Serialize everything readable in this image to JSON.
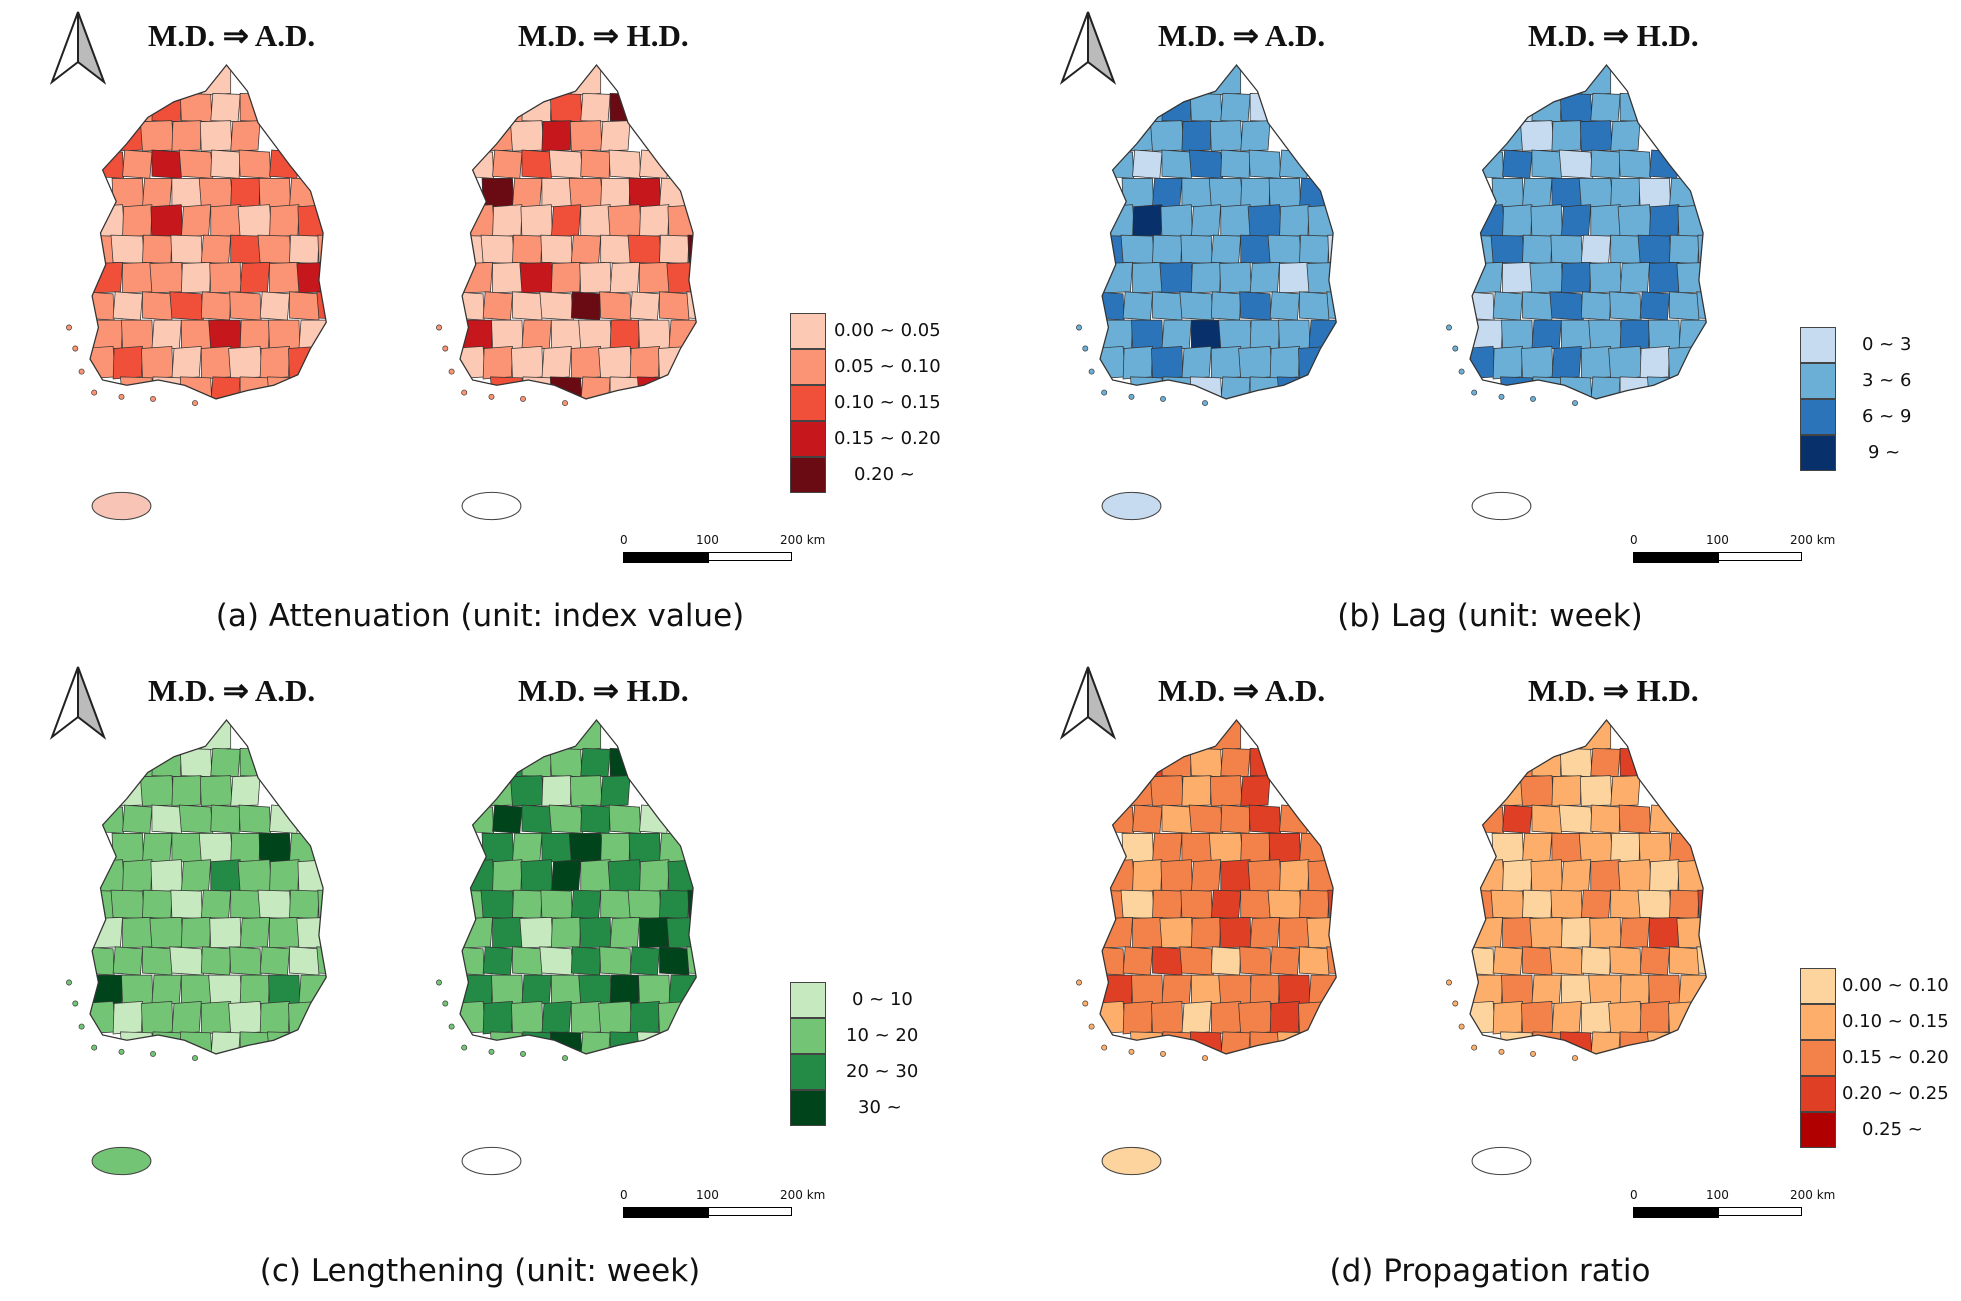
{
  "panels": [
    {
      "id": "a",
      "caption": "(a) Attenuation (unit: index value)",
      "maps": [
        {
          "title": "M.D. ⇒ A.D.",
          "fill_index": [
            0,
            1,
            2,
            1,
            0,
            1,
            2,
            1,
            1,
            0,
            1,
            2,
            1,
            3,
            1,
            0,
            1,
            2,
            1,
            1,
            0,
            1,
            2,
            1,
            1,
            0,
            1,
            3,
            1,
            1,
            0,
            1,
            2,
            1,
            0,
            1
          ],
          "island_color": "#f7c4b5"
        },
        {
          "title": "M.D. ⇒ H.D.",
          "fill_index": [
            0,
            1,
            0,
            2,
            0,
            4,
            1,
            0,
            3,
            1,
            0,
            0,
            1,
            2,
            0,
            1,
            0,
            0,
            4,
            1,
            0,
            1,
            0,
            3,
            0,
            1,
            0,
            0,
            2,
            0,
            1,
            0,
            1,
            0,
            0,
            1
          ],
          "island_color": "#ffffff"
        }
      ],
      "legend": {
        "items": [
          {
            "label": "0.00 ~ 0.05",
            "color": "#fcc9b4"
          },
          {
            "label": "0.05 ~ 0.10",
            "color": "#fb9474"
          },
          {
            "label": "0.10 ~ 0.15",
            "color": "#f0503a"
          },
          {
            "label": "0.15 ~ 0.20",
            "color": "#c5171c"
          },
          {
            "label": "0.20 ~",
            "color": "#6a0a12"
          }
        ]
      },
      "scale": {
        "ticks": [
          "0",
          "100",
          "200 km"
        ]
      }
    },
    {
      "id": "b",
      "caption": "(b) Lag (unit: week)",
      "maps": [
        {
          "title": "M.D. ⇒ A.D.",
          "fill_index": [
            1,
            1,
            2,
            1,
            1,
            0,
            1,
            1,
            2,
            1,
            1,
            1,
            0,
            1,
            2,
            1,
            1,
            1,
            1,
            2,
            1,
            1,
            1,
            1,
            2,
            1,
            3,
            1,
            1,
            1,
            2,
            1,
            1,
            2,
            1,
            1
          ],
          "island_color": "#c6dbef"
        },
        {
          "title": "M.D. ⇒ H.D.",
          "fill_index": [
            1,
            0,
            1,
            2,
            1,
            1,
            1,
            0,
            1,
            2,
            1,
            1,
            2,
            1,
            0,
            1,
            1,
            2,
            1,
            1,
            2,
            1,
            1,
            0,
            1,
            2,
            1,
            1,
            2,
            1,
            1,
            2,
            1,
            1,
            2,
            1
          ],
          "island_color": "#ffffff"
        }
      ],
      "legend": {
        "items": [
          {
            "label": "0 ~ 3",
            "color": "#c6dbef"
          },
          {
            "label": "3 ~ 6",
            "color": "#6baed6"
          },
          {
            "label": "6 ~ 9",
            "color": "#2b74b9"
          },
          {
            "label": "9 ~",
            "color": "#08306b"
          }
        ]
      },
      "scale": {
        "ticks": [
          "0",
          "100",
          "200 km"
        ]
      }
    },
    {
      "id": "c",
      "caption": "(c) Lengthening (unit: week)",
      "maps": [
        {
          "title": "M.D. ⇒ A.D.",
          "fill_index": [
            0,
            1,
            1,
            0,
            1,
            1,
            0,
            1,
            1,
            1,
            0,
            1,
            1,
            0,
            1,
            1,
            1,
            0,
            1,
            1,
            1,
            0,
            1,
            3,
            1,
            1,
            1,
            0,
            1,
            2,
            1,
            1,
            0,
            1,
            1,
            1
          ],
          "island_color": "#74c476"
        },
        {
          "title": "M.D. ⇒ H.D.",
          "fill_index": [
            1,
            2,
            1,
            1,
            2,
            3,
            1,
            2,
            0,
            1,
            2,
            1,
            3,
            2,
            1,
            2,
            1,
            0,
            2,
            1,
            2,
            3,
            1,
            2,
            1,
            2,
            1,
            2,
            3,
            1,
            2,
            1,
            2,
            1,
            2,
            1
          ],
          "island_color": "#ffffff"
        }
      ],
      "legend": {
        "items": [
          {
            "label": "0 ~ 10",
            "color": "#c7e9c0"
          },
          {
            "label": "10 ~ 20",
            "color": "#74c476"
          },
          {
            "label": "20 ~ 30",
            "color": "#238b45"
          },
          {
            "label": "30 ~",
            "color": "#00441b"
          }
        ]
      },
      "scale": {
        "ticks": [
          "0",
          "100",
          "200 km"
        ]
      }
    },
    {
      "id": "d",
      "caption": "(d) Propagation ratio",
      "maps": [
        {
          "title": "M.D. ⇒ A.D.",
          "fill_index": [
            2,
            3,
            2,
            1,
            2,
            3,
            2,
            2,
            1,
            2,
            3,
            2,
            2,
            1,
            2,
            2,
            3,
            2,
            0,
            2,
            2,
            1,
            2,
            3,
            2,
            2,
            1,
            2,
            2,
            3,
            2,
            1,
            2,
            2,
            0,
            2
          ],
          "island_color": "#fdd49e"
        },
        {
          "title": "M.D. ⇒ H.D.",
          "fill_index": [
            1,
            2,
            1,
            0,
            2,
            3,
            1,
            2,
            1,
            0,
            1,
            2,
            3,
            1,
            0,
            1,
            2,
            1,
            0,
            1,
            2,
            1,
            0,
            1,
            2,
            1,
            0,
            1,
            1,
            2,
            1,
            0,
            1,
            2,
            1,
            0
          ],
          "island_color": "#ffffff"
        }
      ],
      "legend": {
        "items": [
          {
            "label": "0.00 ~ 0.10",
            "color": "#fdd49e"
          },
          {
            "label": "0.10 ~ 0.15",
            "color": "#fdae6b"
          },
          {
            "label": "0.15 ~ 0.20",
            "color": "#f3824a"
          },
          {
            "label": "0.20 ~ 0.25",
            "color": "#de3f25"
          },
          {
            "label": "0.25 ~",
            "color": "#b00000"
          }
        ]
      },
      "scale": {
        "ticks": [
          "0",
          "100",
          "200 km"
        ]
      }
    }
  ]
}
